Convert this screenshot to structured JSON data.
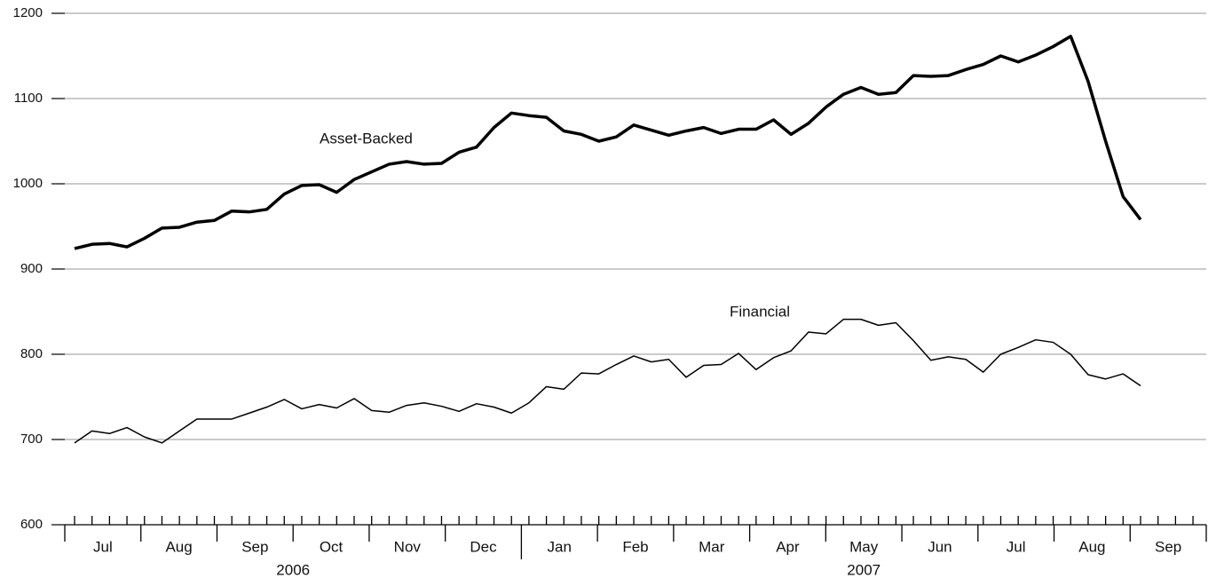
{
  "chart_data": {
    "type": "line",
    "months": [
      "Jul",
      "Aug",
      "Sep",
      "Oct",
      "Nov",
      "Dec",
      "Jan",
      "Feb",
      "Mar",
      "Apr",
      "May",
      "Jun",
      "Jul",
      "Aug",
      "Sep"
    ],
    "years": [
      "2006",
      "2007"
    ],
    "series": [
      {
        "name": "Asset-Backed",
        "color": "#000000",
        "width": 3.5,
        "values": [
          924,
          929,
          930,
          926,
          936,
          948,
          949,
          955,
          957,
          968,
          967,
          970,
          988,
          998,
          999,
          990,
          1005,
          1014,
          1023,
          1026,
          1023,
          1024,
          1037,
          1043,
          1066,
          1083,
          1080,
          1078,
          1062,
          1058,
          1050,
          1055,
          1069,
          1063,
          1057,
          1062,
          1066,
          1059,
          1064,
          1064,
          1075,
          1058,
          1071,
          1090,
          1105,
          1113,
          1105,
          1107,
          1127,
          1126,
          1127,
          1134,
          1140,
          1150,
          1143,
          1151,
          1161,
          1173,
          1120,
          1050,
          985,
          958
        ]
      },
      {
        "name": "Financial",
        "color": "#000000",
        "width": 1.5,
        "values": [
          696,
          710,
          707,
          714,
          703,
          696,
          710,
          724,
          724,
          724,
          731,
          738,
          747,
          736,
          741,
          737,
          748,
          734,
          732,
          740,
          743,
          739,
          733,
          742,
          738,
          731,
          743,
          762,
          759,
          778,
          777,
          788,
          798,
          791,
          794,
          773,
          787,
          788,
          801,
          782,
          796,
          804,
          826,
          824,
          841,
          841,
          834,
          837,
          816,
          793,
          797,
          794,
          779,
          800,
          808,
          817,
          814,
          800,
          776,
          771,
          777,
          763
        ]
      }
    ],
    "ylim": [
      600,
      1200
    ],
    "yticks": [
      600,
      700,
      800,
      900,
      1000,
      1100,
      1200
    ],
    "grid": true
  }
}
